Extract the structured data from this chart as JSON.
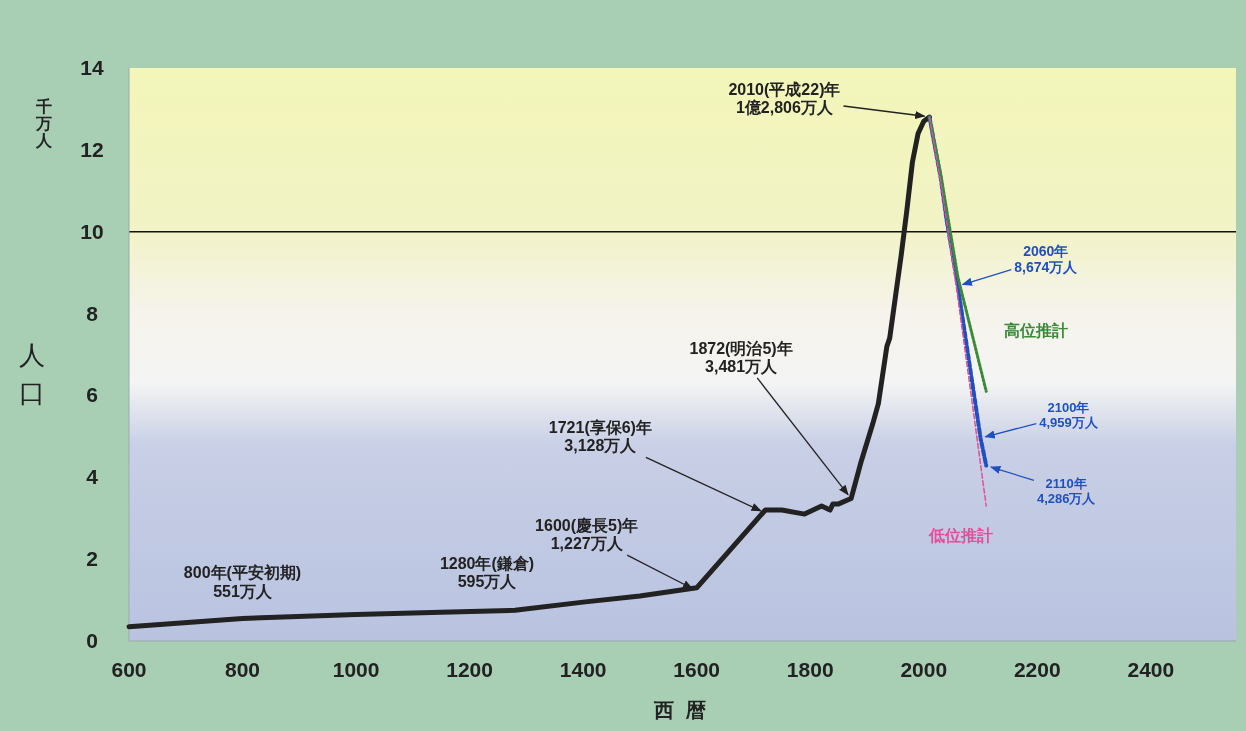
{
  "chart_data": {
    "type": "line",
    "xlabel": "西暦",
    "ylabel": "人口",
    "xlim": [
      600,
      2550
    ],
    "ylim": [
      0,
      14
    ],
    "xticks": [
      600,
      800,
      1000,
      1200,
      1400,
      1600,
      1800,
      2000,
      2200,
      2400
    ],
    "yticks": [
      0,
      2,
      4,
      6,
      8,
      10,
      12,
      14
    ],
    "grid": false,
    "legend": false,
    "ref_lines": [
      {
        "axis": "y",
        "value": 10,
        "color": "#111111"
      }
    ],
    "series": [
      {
        "color": "#222222",
        "line_style": "solid",
        "x": [
          600,
          800,
          1000,
          1150,
          1280,
          1400,
          1500,
          1600,
          1721,
          1750,
          1790,
          1820,
          1835,
          1840,
          1850,
          1872,
          1890,
          1910,
          1920,
          1935,
          1940,
          1950,
          1960,
          1970,
          1980,
          1990,
          2000,
          2010
        ],
        "values": [
          0.35,
          0.55,
          0.65,
          0.7,
          0.75,
          0.95,
          1.1,
          1.3,
          3.2,
          3.2,
          3.1,
          3.3,
          3.2,
          3.35,
          3.35,
          3.48,
          4.4,
          5.3,
          5.8,
          7.2,
          7.4,
          8.4,
          9.4,
          10.5,
          11.7,
          12.4,
          12.7,
          12.8
        ]
      },
      {
        "name": "高位推計",
        "color": "#3a8a3a",
        "line_style": "dotted",
        "x": [
          2010,
          2030,
          2060,
          2110
        ],
        "values": [
          12.8,
          11.4,
          8.9,
          6.1
        ]
      },
      {
        "color": "#2050c0",
        "line_style": "dashed",
        "x": [
          2010,
          2030,
          2040,
          2060,
          2100,
          2110
        ],
        "values": [
          12.8,
          11.3,
          10.3,
          8.674,
          4.959,
          4.286
        ]
      },
      {
        "name": "低位推計",
        "color": "#e0509a",
        "line_style": "dashed",
        "x": [
          2010,
          2030,
          2060,
          2110
        ],
        "values": [
          12.8,
          11.2,
          8.4,
          3.3
        ]
      }
    ],
    "annotations": [
      "千万人",
      {
        "text": "800年(平安初期)\n551万人",
        "x": 800,
        "y": 0.551
      },
      {
        "text": "1280年(鎌倉)\n595万人",
        "x": 1280,
        "y": 0.595
      },
      {
        "text": "1600(慶長5)年\n1,227万人",
        "x": 1600,
        "y": 1.227
      },
      {
        "text": "1721(享保6)年\n3,128万人",
        "x": 1721,
        "y": 3.128
      },
      {
        "text": "1872(明治5)年\n3,481万人",
        "x": 1872,
        "y": 3.481
      },
      {
        "text": "2010(平成22)年\n1億2,806万人",
        "x": 2010,
        "y": 12.806
      },
      {
        "text": "2060年\n8,674万人",
        "x": 2060,
        "y": 8.674
      },
      {
        "text": "2100年\n4,959万人",
        "x": 2100,
        "y": 4.959
      },
      {
        "text": "2110年\n4,286万人",
        "x": 2110,
        "y": 4.286
      }
    ]
  }
}
